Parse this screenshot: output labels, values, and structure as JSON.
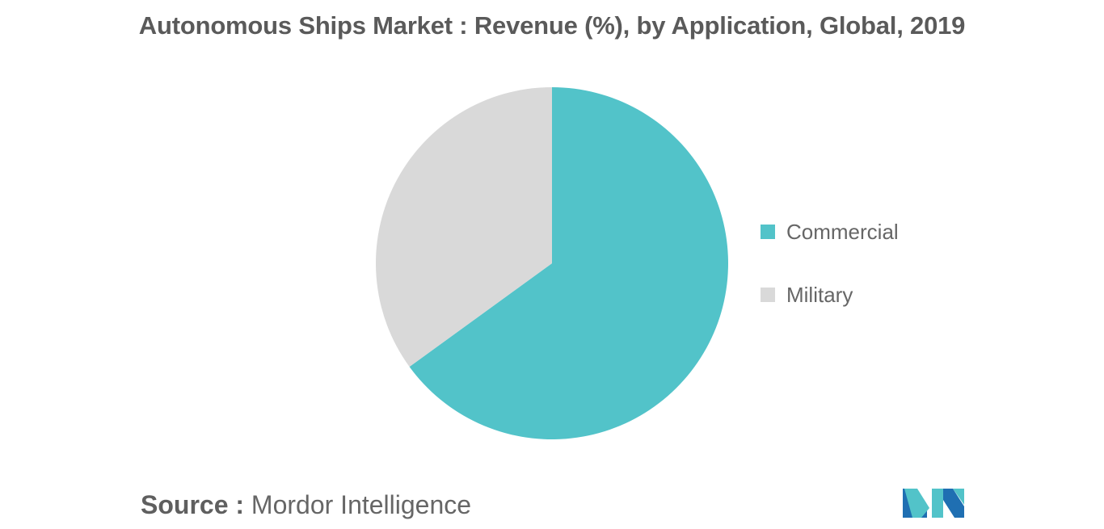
{
  "title": "Autonomous Ships Market : Revenue (%), by Application, Global, 2019",
  "chart_data": {
    "type": "pie",
    "title": "Autonomous Ships Market : Revenue (%), by Application, Global, 2019",
    "slices": [
      {
        "label": "Commercial",
        "value": 65,
        "color": "#52c3c9"
      },
      {
        "label": "Military",
        "value": 35,
        "color": "#d9d9d9"
      }
    ],
    "start_angle_deg": 0,
    "direction": "clockwise",
    "legend_position": "right"
  },
  "legend": {
    "items": [
      {
        "label": "Commercial",
        "color": "#52c3c9"
      },
      {
        "label": "Military",
        "color": "#d9d9d9"
      }
    ]
  },
  "source": {
    "prefix": "Source :",
    "text": "Mordor Intelligence"
  },
  "logo": {
    "icon": "mordor-intelligence-logo",
    "colors": [
      "#1f6fb2",
      "#52c3c9"
    ]
  }
}
